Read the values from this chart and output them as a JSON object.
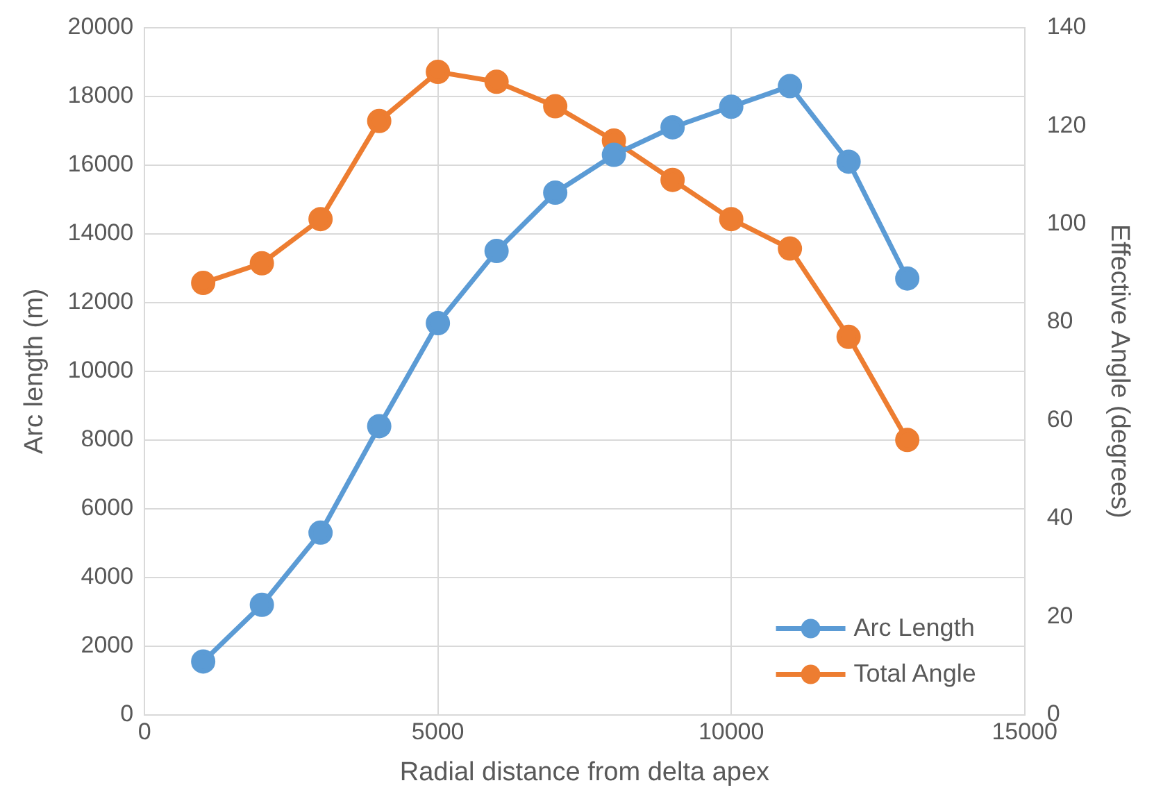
{
  "chart_data": {
    "type": "line",
    "xlabel": "Radial distance from delta apex",
    "ylabel": "Arc length (m)",
    "y2label": "Effective Angle (degrees)",
    "x": [
      1000,
      2000,
      3000,
      4000,
      5000,
      6000,
      7000,
      8000,
      9000,
      10000,
      11000,
      12000,
      13000
    ],
    "series": [
      {
        "name": "Arc Length",
        "color": "#5b9bd5",
        "values": [
          1550,
          3200,
          5300,
          8400,
          11400,
          13500,
          15200,
          16300,
          17100,
          17700,
          18300,
          16100,
          12700
        ]
      },
      {
        "name": "Total Angle",
        "color": "#ed7d31",
        "axis": "y2",
        "values": [
          88,
          92,
          101,
          121,
          131,
          129,
          124,
          117,
          109,
          101,
          95,
          77,
          56
        ]
      }
    ],
    "xlim": [
      0,
      15000
    ],
    "xticks": [
      0,
      5000,
      10000,
      15000
    ],
    "ylim": [
      0,
      20000
    ],
    "yticks": [
      0,
      2000,
      4000,
      6000,
      8000,
      10000,
      12000,
      14000,
      16000,
      18000,
      20000
    ],
    "y2lim": [
      0,
      140
    ],
    "y2ticks": [
      0,
      20,
      40,
      60,
      80,
      100,
      120,
      140
    ],
    "grid": true,
    "legend": "bottom right",
    "marker": "circle",
    "line_style": "solid"
  }
}
